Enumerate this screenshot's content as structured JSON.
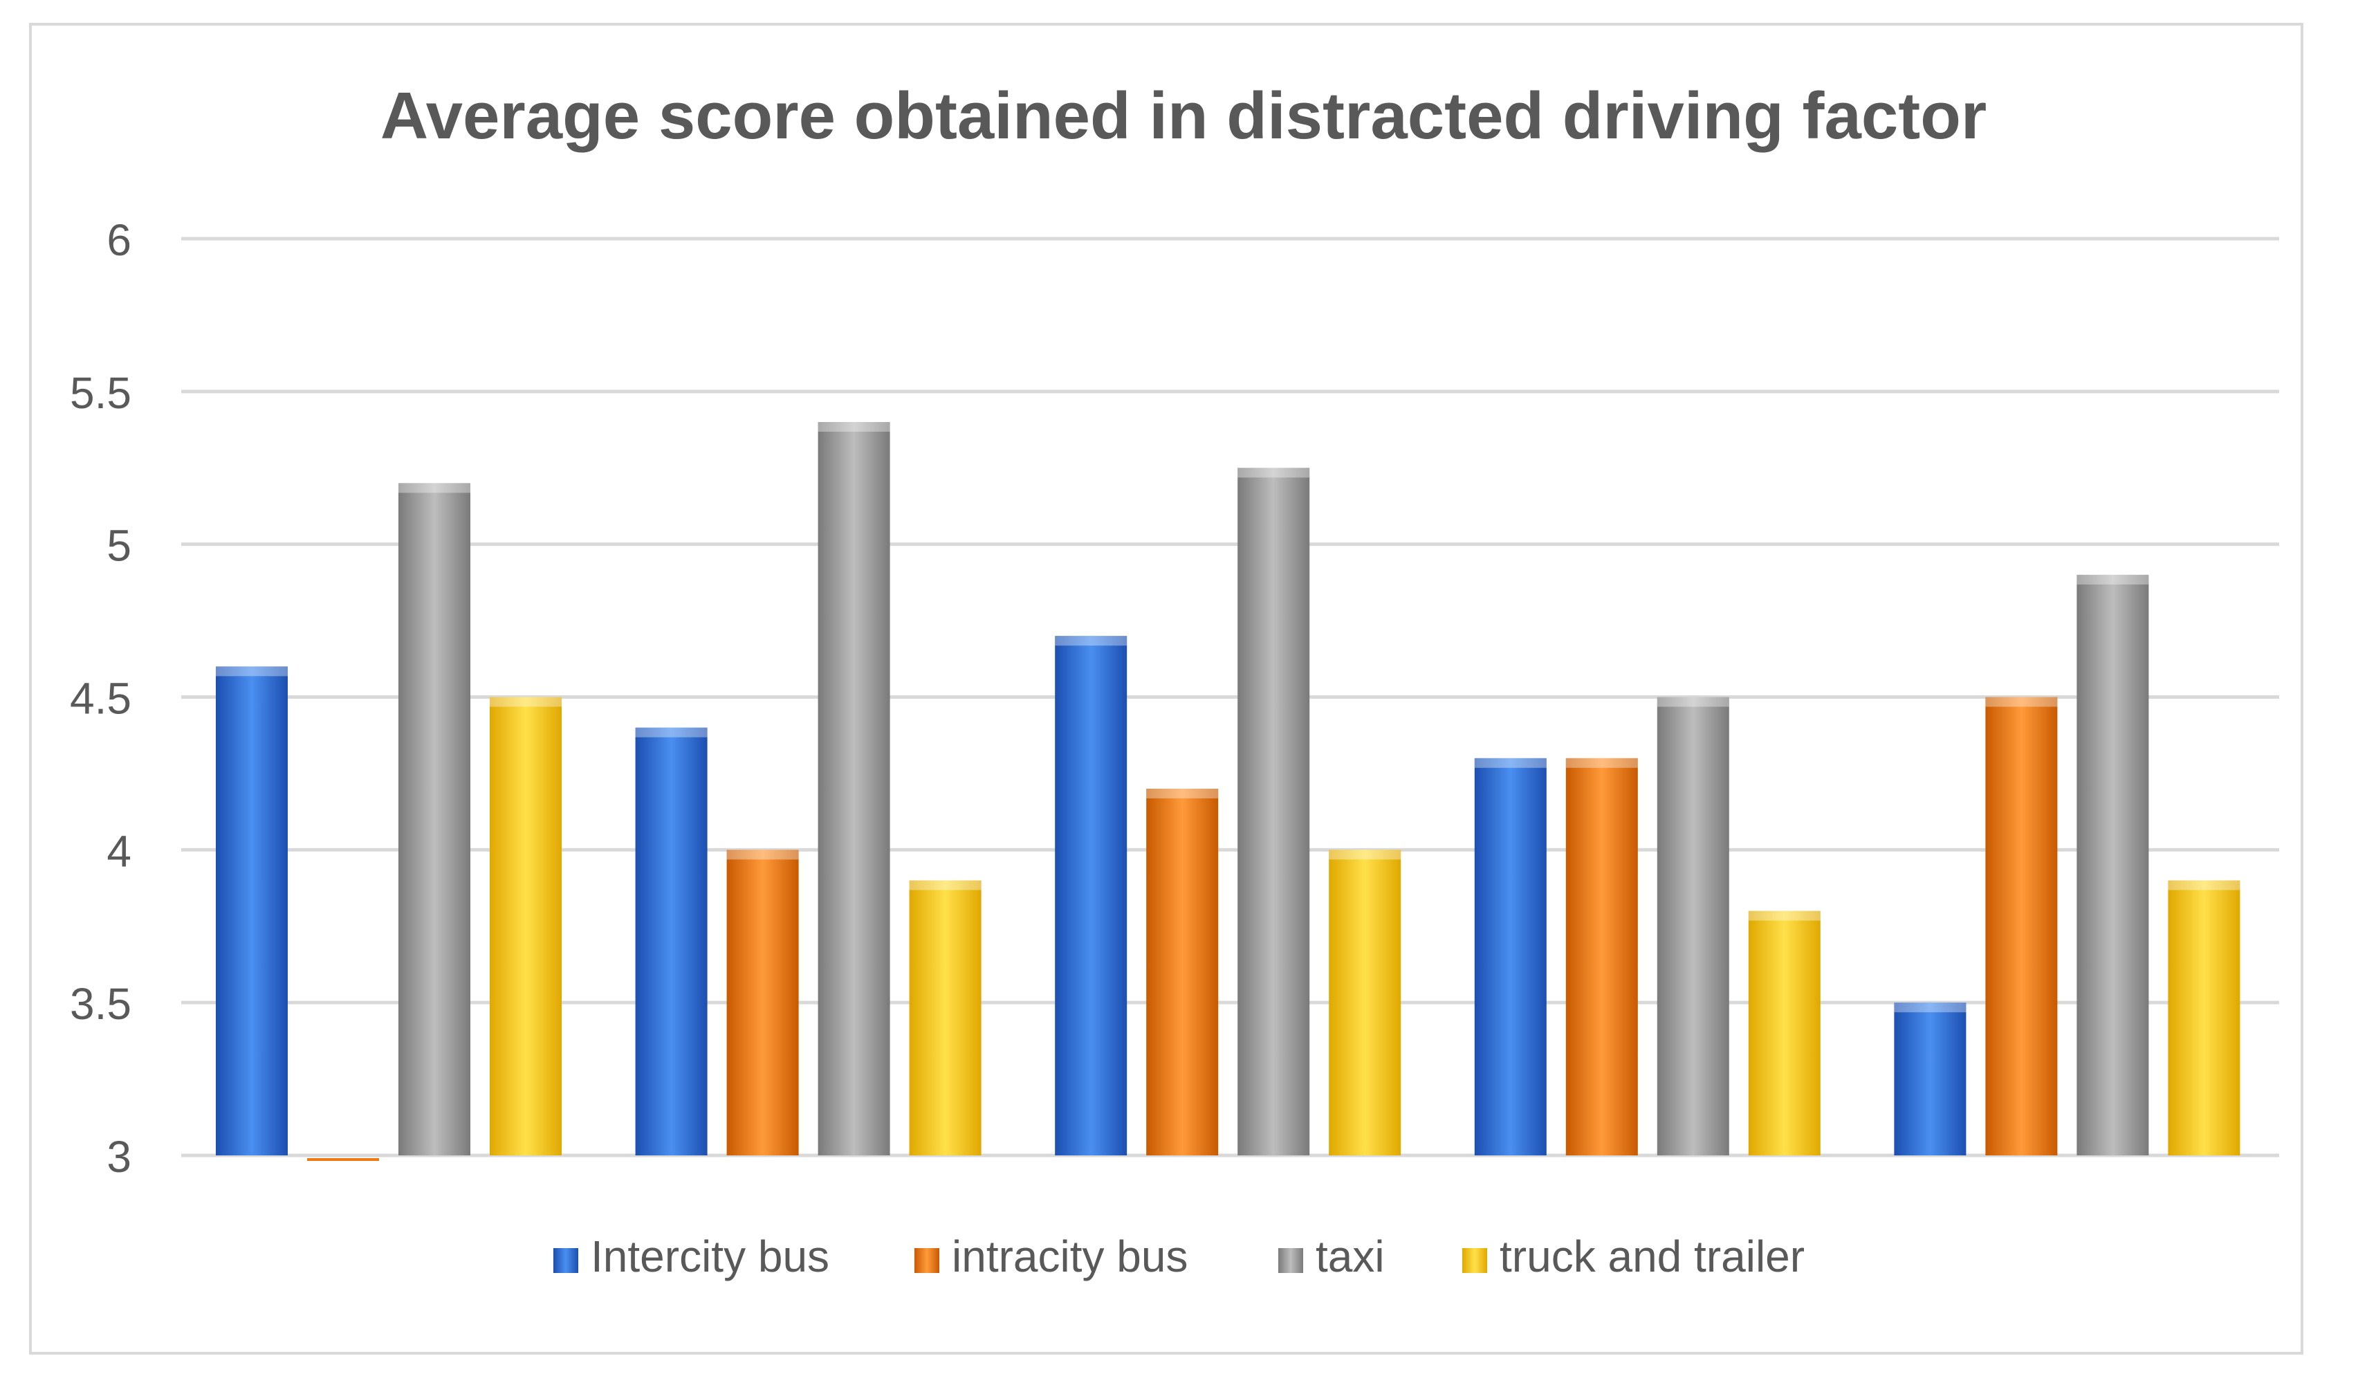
{
  "chart_data": {
    "type": "bar",
    "title": "Average score obtained in distracted driving factor",
    "xlabel": "",
    "ylabel": "",
    "ylim": [
      3,
      6
    ],
    "yticks": [
      3,
      3.5,
      4,
      4.5,
      5,
      5.5,
      6
    ],
    "ytick_labels": [
      "3",
      "3.5",
      "4",
      "4.5",
      "5",
      "5.5",
      "6"
    ],
    "grid": true,
    "legend_position": "bottom",
    "categories": [
      "",
      "",
      "",
      "",
      ""
    ],
    "series": [
      {
        "name": "Intercity bus",
        "color": "#2e6bd6",
        "values": [
          4.6,
          4.4,
          4.7,
          4.3,
          3.5
        ]
      },
      {
        "name": "intracity bus",
        "color": "#f07a12",
        "values": [
          2.99,
          4.0,
          4.2,
          4.3,
          4.5
        ]
      },
      {
        "name": "taxi",
        "color": "#9e9e9e",
        "values": [
          5.2,
          5.4,
          5.25,
          4.5,
          4.9
        ]
      },
      {
        "name": "truck and trailer",
        "color": "#ffcc00",
        "values": [
          4.5,
          3.9,
          4.0,
          3.8,
          3.9
        ]
      }
    ]
  }
}
